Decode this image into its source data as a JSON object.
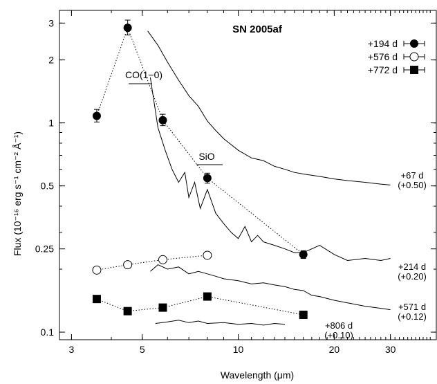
{
  "chart_data": {
    "type": "line",
    "title": "SN 2005af",
    "xlabel": "Wavelength (μm)",
    "ylabel": "Flux (10⁻¹⁶ erg s⁻¹ cm⁻² Å⁻¹)",
    "xscale": "log",
    "yscale": "log",
    "xlim": [
      2.75,
      42
    ],
    "ylim": [
      0.092,
      3.45
    ],
    "x_ticks": [
      3,
      5,
      10,
      20,
      30
    ],
    "x_tick_labels": [
      "3",
      "5",
      "10",
      "20",
      "30"
    ],
    "y_ticks": [
      0.1,
      0.25,
      0.5,
      1,
      2,
      3
    ],
    "y_tick_labels": [
      "0.1",
      "0.25",
      "0.5",
      "1",
      "2",
      "3"
    ],
    "legend_position": "top-right",
    "legend": [
      {
        "label": "+194 d",
        "marker": "filled-circle"
      },
      {
        "label": "+576 d",
        "marker": "open-circle"
      },
      {
        "label": "+772 d",
        "marker": "filled-square"
      }
    ],
    "photometry": [
      {
        "name": "+194 d",
        "marker": "filled-circle",
        "points": [
          {
            "x": 3.6,
            "y": 1.08,
            "err": [
              0.07,
              0.08
            ]
          },
          {
            "x": 4.5,
            "y": 2.85,
            "err": [
              0.22,
              0.25
            ]
          },
          {
            "x": 5.8,
            "y": 1.03,
            "err": [
              0.06,
              0.07
            ]
          },
          {
            "x": 8.0,
            "y": 0.545,
            "err": [
              0.03,
              0.03
            ]
          },
          {
            "x": 16.0,
            "y": 0.235,
            "err": [
              0.01,
              0.01
            ]
          }
        ]
      },
      {
        "name": "+576 d",
        "marker": "open-circle",
        "points": [
          {
            "x": 3.6,
            "y": 0.198
          },
          {
            "x": 4.5,
            "y": 0.21
          },
          {
            "x": 5.8,
            "y": 0.222
          },
          {
            "x": 8.0,
            "y": 0.233
          }
        ]
      },
      {
        "name": "+772 d",
        "marker": "filled-square",
        "points": [
          {
            "x": 3.6,
            "y": 0.144
          },
          {
            "x": 4.5,
            "y": 0.126
          },
          {
            "x": 5.8,
            "y": 0.131
          },
          {
            "x": 8.0,
            "y": 0.148
          },
          {
            "x": 16.0,
            "y": 0.121
          }
        ]
      }
    ],
    "spectra": [
      {
        "label": "+67 d",
        "offset": "(+0.50)",
        "x": [
          5.2,
          5.6,
          6.0,
          6.5,
          7.0,
          7.5,
          8.0,
          8.5,
          9.0,
          10.0,
          11.0,
          12.0,
          13.0,
          14.0,
          15.0,
          16.0,
          18.0,
          20.0,
          22.0,
          25.0,
          28.0,
          30.0
        ],
        "y": [
          2.75,
          2.35,
          1.95,
          1.6,
          1.35,
          1.2,
          1.02,
          0.92,
          0.84,
          0.74,
          0.68,
          0.66,
          0.62,
          0.6,
          0.58,
          0.57,
          0.555,
          0.54,
          0.53,
          0.52,
          0.51,
          0.505
        ]
      },
      {
        "label": "+214 d",
        "offset": "(+0.20)",
        "x": [
          5.3,
          5.6,
          5.9,
          6.2,
          6.5,
          6.8,
          7.0,
          7.3,
          7.6,
          8.0,
          8.5,
          9.0,
          9.5,
          10.0,
          10.5,
          11.0,
          11.5,
          12.0,
          13.0,
          14.0,
          15.0,
          16.0,
          18.0,
          20.0,
          22.0,
          25.0,
          28.0,
          30.0
        ],
        "y": [
          1.65,
          0.95,
          0.74,
          0.6,
          0.52,
          0.58,
          0.44,
          0.52,
          0.39,
          0.48,
          0.37,
          0.33,
          0.3,
          0.28,
          0.32,
          0.27,
          0.29,
          0.27,
          0.26,
          0.25,
          0.24,
          0.24,
          0.26,
          0.235,
          0.22,
          0.225,
          0.22,
          0.225
        ]
      },
      {
        "label": "+571 d",
        "offset": "(+0.12)",
        "x": [
          5.3,
          5.6,
          6.0,
          6.5,
          7.0,
          7.5,
          8.0,
          8.5,
          9.0,
          10.0,
          11.0,
          12.0,
          13.0,
          14.0,
          15.0,
          16.0,
          17.0,
          18.0,
          20.0,
          22.0,
          25.0,
          28.0,
          30.0
        ],
        "y": [
          0.195,
          0.21,
          0.2,
          0.205,
          0.19,
          0.195,
          0.19,
          0.185,
          0.18,
          0.176,
          0.17,
          0.172,
          0.168,
          0.165,
          0.16,
          0.158,
          0.15,
          0.148,
          0.142,
          0.138,
          0.133,
          0.13,
          0.128
        ]
      },
      {
        "label": "+806 d",
        "offset": "(+0.10)",
        "x": [
          5.5,
          6.0,
          6.5,
          7.0,
          7.5,
          8.0,
          9.0,
          10.0,
          11.0,
          12.0,
          13.0,
          14.0
        ],
        "y": [
          0.11,
          0.112,
          0.114,
          0.111,
          0.113,
          0.11,
          0.111,
          0.109,
          0.11,
          0.108,
          0.11,
          0.109
        ]
      }
    ],
    "annotations": [
      {
        "text": "CO(1−0)",
        "x": 4.6
      },
      {
        "text": "SiO",
        "x": 8.0
      }
    ],
    "colors": {
      "line": "#000000",
      "background": "#ffffff"
    }
  }
}
